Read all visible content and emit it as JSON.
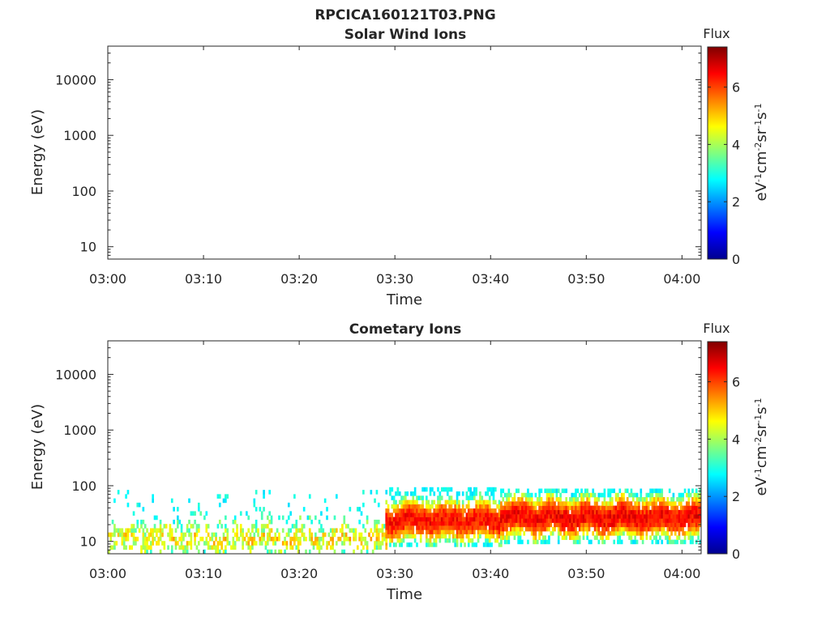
{
  "figure": {
    "title": "RPCICA160121T03.PNG"
  },
  "chart_data": [
    {
      "type": "heatmap",
      "title": "Solar Wind Ions",
      "xlabel": "Time",
      "ylabel": "Energy (eV)",
      "y_scale": "log",
      "xlim": [
        "03:00",
        "04:02"
      ],
      "ylim": [
        6,
        40000
      ],
      "x_ticks": [
        "03:00",
        "03:10",
        "03:20",
        "03:30",
        "03:40",
        "03:50",
        "04:00"
      ],
      "y_ticks": [
        "10",
        "100",
        "1000",
        "10000"
      ],
      "colorbar": {
        "label": "Flux",
        "unit": "eV⁻¹cm⁻²sr⁻¹s⁻¹",
        "ticks": [
          "0",
          "2",
          "4",
          "6"
        ],
        "range": [
          0,
          7.4
        ],
        "colormap": "jet"
      },
      "regions": []
    },
    {
      "type": "heatmap",
      "title": "Cometary Ions",
      "xlabel": "Time",
      "ylabel": "Energy (eV)",
      "y_scale": "log",
      "xlim": [
        "03:00",
        "04:02"
      ],
      "ylim": [
        6,
        40000
      ],
      "x_ticks": [
        "03:00",
        "03:10",
        "03:20",
        "03:30",
        "03:40",
        "03:50",
        "04:00"
      ],
      "y_ticks": [
        "10",
        "100",
        "1000",
        "10000"
      ],
      "colorbar": {
        "label": "Flux",
        "unit": "eV⁻¹cm⁻²sr⁻¹s⁻¹",
        "ticks": [
          "0",
          "2",
          "4",
          "6"
        ],
        "range": [
          0,
          7.4
        ],
        "colormap": "jet"
      },
      "regions": [
        {
          "time_start": "03:00",
          "time_end": "03:29",
          "energy_min": 6,
          "energy_max": 80,
          "peak_energy": 10,
          "peak_flux": 4.8,
          "coverage": "sparse"
        },
        {
          "time_start": "03:29",
          "time_end": "03:41",
          "energy_min": 8,
          "energy_max": 80,
          "peak_energy": 22,
          "peak_flux": 6.4,
          "coverage": "band"
        },
        {
          "time_start": "03:41",
          "time_end": "04:02",
          "energy_min": 9,
          "energy_max": 80,
          "peak_energy": 25,
          "peak_flux": 6.5,
          "coverage": "band"
        }
      ]
    }
  ]
}
